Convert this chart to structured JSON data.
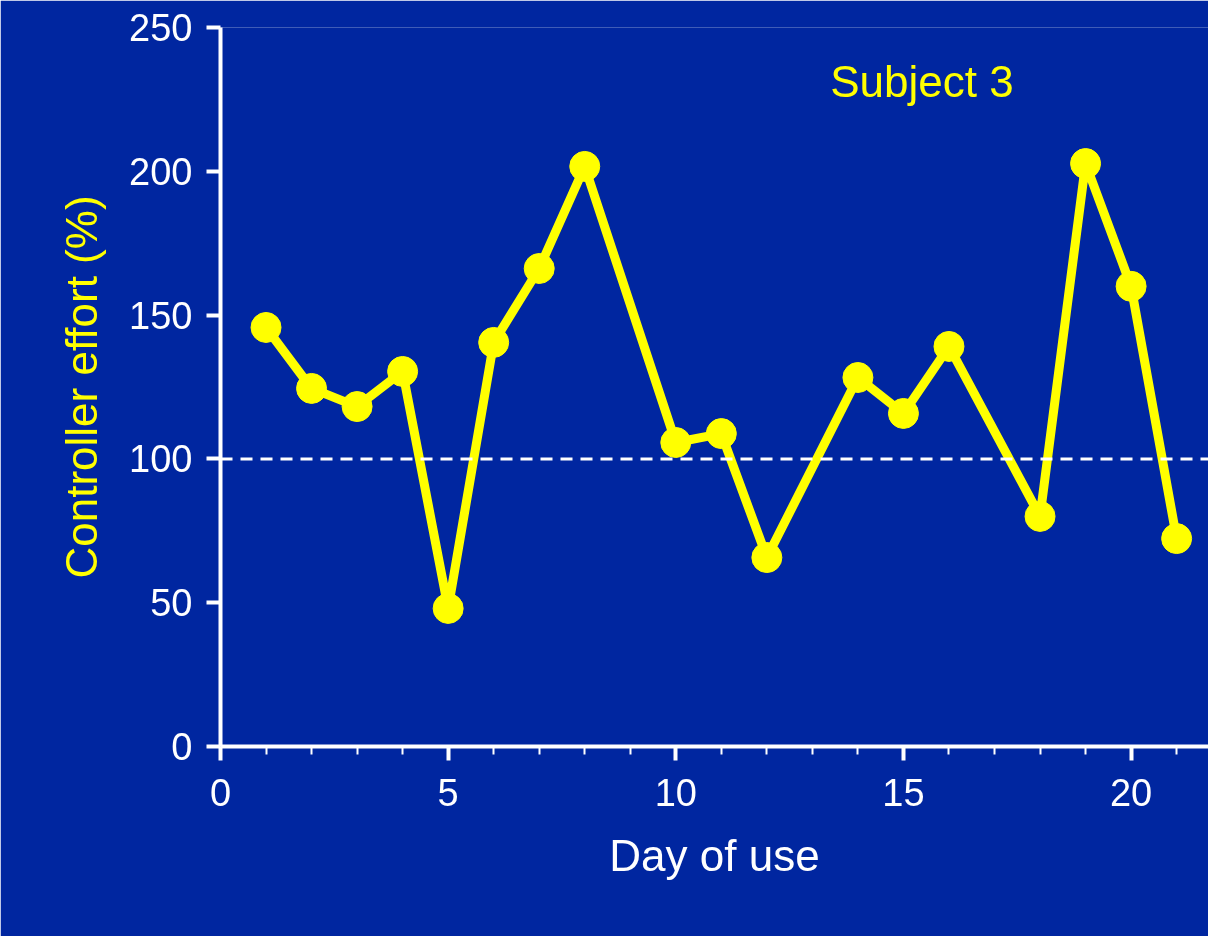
{
  "chart_data": {
    "type": "line",
    "xlabel": "Day of use",
    "ylabel": "Controller effort (%)",
    "annotations": [
      "Subject 3"
    ],
    "x": [
      1,
      2,
      3,
      4,
      5,
      6,
      7,
      8,
      10,
      11,
      12,
      14,
      15,
      16,
      18,
      19,
      20,
      21
    ],
    "series": [
      {
        "color": "#ffff00",
        "values": [
          145.7,
          124.5,
          118.2,
          130.4,
          48,
          140.5,
          166.2,
          201.7,
          105.7,
          108.8,
          65.7,
          128.3,
          115.8,
          139.1,
          80,
          202.7,
          160,
          72.3
        ]
      }
    ],
    "xlim": [
      0,
      21.7
    ],
    "ylim": [
      0,
      250
    ],
    "xticks": [
      0,
      {
        "value": 1,
        "label": null
      },
      {
        "value": 2,
        "label": null
      },
      {
        "value": 3,
        "label": null
      },
      {
        "value": 4,
        "label": null
      },
      5,
      {
        "value": 6,
        "label": null
      },
      {
        "value": 7,
        "label": null
      },
      {
        "value": 8,
        "label": null
      },
      {
        "value": 9,
        "label": null
      },
      10,
      {
        "value": 11,
        "label": null
      },
      {
        "value": 12,
        "label": null
      },
      {
        "value": 13,
        "label": null
      },
      {
        "value": 14,
        "label": null
      },
      15,
      {
        "value": 16,
        "label": null
      },
      {
        "value": 17,
        "label": null
      },
      {
        "value": 18,
        "label": null
      },
      {
        "value": 19,
        "label": null
      },
      20,
      {
        "value": 21,
        "label": null
      }
    ],
    "yticks": [
      0,
      50,
      100,
      150,
      200,
      250
    ],
    "ref_lines": [
      {
        "axis": "y",
        "value": 100,
        "color": "#ffffff",
        "line_style": "dashed"
      }
    ],
    "marker": "circle",
    "line_style": "solid",
    "grid": false
  }
}
